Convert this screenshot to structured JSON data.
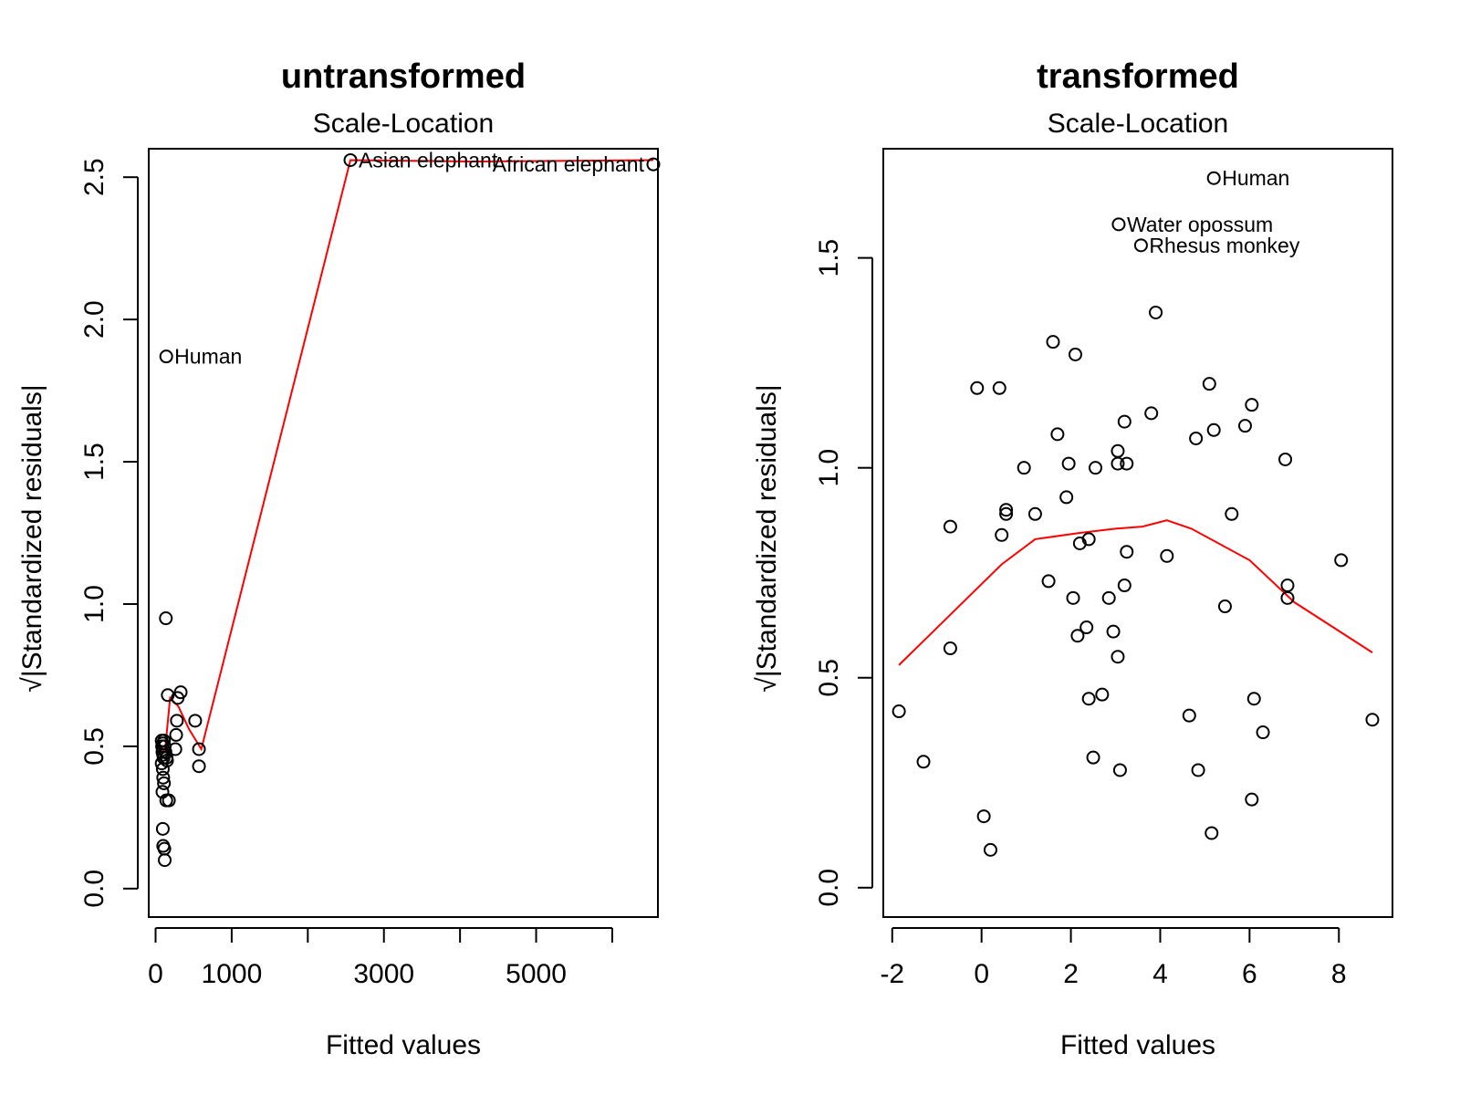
{
  "colors": {
    "points": "#000000",
    "smoother": "#ff0000",
    "background": "#ffffff"
  },
  "chart_data": [
    {
      "type": "scatter",
      "title": "untransformed",
      "subtitle": "Scale-Location",
      "xlabel": "Fitted values",
      "ylabel": "√|Standardized residuals|",
      "xlim": [
        -90,
        6600
      ],
      "ylim": [
        -0.1,
        2.6
      ],
      "xticks": [
        0,
        1000,
        2000,
        3000,
        4000,
        5000,
        6000
      ],
      "xtick_labels": [
        "0",
        "1000",
        "",
        "3000",
        "",
        "5000",
        ""
      ],
      "yticks": [
        0.0,
        0.5,
        1.0,
        1.5,
        2.0,
        2.5
      ],
      "ytick_labels": [
        "0.0",
        "0.5",
        "1.0",
        "1.5",
        "2.0",
        "2.5"
      ],
      "points": [
        {
          "x": 2560,
          "y": 2.56,
          "label": "Asian elephant"
        },
        {
          "x": 6540,
          "y": 2.545,
          "label": "African elephant"
        },
        {
          "x": 140,
          "y": 1.87,
          "label": "Human"
        },
        {
          "x": 135,
          "y": 0.95
        },
        {
          "x": 160,
          "y": 0.68
        },
        {
          "x": 330,
          "y": 0.69
        },
        {
          "x": 290,
          "y": 0.67
        },
        {
          "x": 520,
          "y": 0.59
        },
        {
          "x": 280,
          "y": 0.59
        },
        {
          "x": 270,
          "y": 0.54
        },
        {
          "x": 570,
          "y": 0.49
        },
        {
          "x": 260,
          "y": 0.49
        },
        {
          "x": 570,
          "y": 0.43
        },
        {
          "x": 80,
          "y": 0.52
        },
        {
          "x": 95,
          "y": 0.51
        },
        {
          "x": 110,
          "y": 0.52
        },
        {
          "x": 120,
          "y": 0.5
        },
        {
          "x": 85,
          "y": 0.5
        },
        {
          "x": 90,
          "y": 0.48
        },
        {
          "x": 100,
          "y": 0.47
        },
        {
          "x": 130,
          "y": 0.48
        },
        {
          "x": 145,
          "y": 0.46
        },
        {
          "x": 150,
          "y": 0.45
        },
        {
          "x": 105,
          "y": 0.46
        },
        {
          "x": 80,
          "y": 0.44
        },
        {
          "x": 95,
          "y": 0.42
        },
        {
          "x": 100,
          "y": 0.39
        },
        {
          "x": 110,
          "y": 0.37
        },
        {
          "x": 90,
          "y": 0.34
        },
        {
          "x": 140,
          "y": 0.31
        },
        {
          "x": 175,
          "y": 0.31
        },
        {
          "x": 95,
          "y": 0.21
        },
        {
          "x": 100,
          "y": 0.15
        },
        {
          "x": 115,
          "y": 0.14
        },
        {
          "x": 120,
          "y": 0.1
        }
      ],
      "smoother": {
        "x": [
          80,
          130,
          190,
          300,
          440,
          600,
          2560,
          4200,
          6540
        ],
        "y": [
          0.47,
          0.5,
          0.67,
          0.64,
          0.56,
          0.49,
          2.56,
          2.555,
          2.56
        ]
      }
    },
    {
      "type": "scatter",
      "title": "transformed",
      "subtitle": "Scale-Location",
      "xlabel": "Fitted values",
      "ylabel": "√|Standardized residuals|",
      "xlim": [
        -2.2,
        9.2
      ],
      "ylim": [
        -0.07,
        1.76
      ],
      "xticks": [
        -2,
        0,
        2,
        4,
        6,
        8
      ],
      "xtick_labels": [
        "-2",
        "0",
        "2",
        "4",
        "6",
        "8"
      ],
      "yticks": [
        0.0,
        0.5,
        1.0,
        1.5
      ],
      "ytick_labels": [
        "0.0",
        "0.5",
        "1.0",
        "1.5"
      ],
      "points": [
        {
          "x": 5.2,
          "y": 1.69,
          "label": "Human"
        },
        {
          "x": 3.07,
          "y": 1.58,
          "label": "Water opossum"
        },
        {
          "x": 3.57,
          "y": 1.53,
          "label": "Rhesus monkey"
        },
        {
          "x": 3.9,
          "y": 1.37
        },
        {
          "x": 1.6,
          "y": 1.3
        },
        {
          "x": 2.1,
          "y": 1.27
        },
        {
          "x": -0.1,
          "y": 1.19
        },
        {
          "x": 0.4,
          "y": 1.19
        },
        {
          "x": 5.1,
          "y": 1.2
        },
        {
          "x": 6.05,
          "y": 1.15
        },
        {
          "x": 3.8,
          "y": 1.13
        },
        {
          "x": 3.2,
          "y": 1.11
        },
        {
          "x": 5.2,
          "y": 1.09
        },
        {
          "x": 5.9,
          "y": 1.1
        },
        {
          "x": 1.7,
          "y": 1.08
        },
        {
          "x": 4.8,
          "y": 1.07
        },
        {
          "x": 3.05,
          "y": 1.04
        },
        {
          "x": 6.8,
          "y": 1.02
        },
        {
          "x": 0.95,
          "y": 1.0
        },
        {
          "x": 1.95,
          "y": 1.01
        },
        {
          "x": 2.55,
          "y": 1.0
        },
        {
          "x": 3.05,
          "y": 1.01
        },
        {
          "x": 3.25,
          "y": 1.01
        },
        {
          "x": 1.9,
          "y": 0.93
        },
        {
          "x": 0.55,
          "y": 0.89
        },
        {
          "x": 0.55,
          "y": 0.9
        },
        {
          "x": 1.2,
          "y": 0.89
        },
        {
          "x": 5.6,
          "y": 0.89
        },
        {
          "x": -0.7,
          "y": 0.86
        },
        {
          "x": 0.45,
          "y": 0.84
        },
        {
          "x": 2.4,
          "y": 0.83
        },
        {
          "x": 2.2,
          "y": 0.82
        },
        {
          "x": 3.25,
          "y": 0.8
        },
        {
          "x": 4.15,
          "y": 0.79
        },
        {
          "x": 8.05,
          "y": 0.78
        },
        {
          "x": 1.5,
          "y": 0.73
        },
        {
          "x": 6.85,
          "y": 0.72
        },
        {
          "x": 3.2,
          "y": 0.72
        },
        {
          "x": 2.05,
          "y": 0.69
        },
        {
          "x": 2.85,
          "y": 0.69
        },
        {
          "x": 6.85,
          "y": 0.69
        },
        {
          "x": 5.45,
          "y": 0.67
        },
        {
          "x": 2.35,
          "y": 0.62
        },
        {
          "x": 2.95,
          "y": 0.61
        },
        {
          "x": 2.15,
          "y": 0.6
        },
        {
          "x": -0.7,
          "y": 0.57
        },
        {
          "x": 3.05,
          "y": 0.55
        },
        {
          "x": 2.7,
          "y": 0.46
        },
        {
          "x": 2.4,
          "y": 0.45
        },
        {
          "x": 6.1,
          "y": 0.45
        },
        {
          "x": -1.85,
          "y": 0.42
        },
        {
          "x": 4.65,
          "y": 0.41
        },
        {
          "x": 8.75,
          "y": 0.4
        },
        {
          "x": 6.3,
          "y": 0.37
        },
        {
          "x": -1.3,
          "y": 0.3
        },
        {
          "x": 2.5,
          "y": 0.31
        },
        {
          "x": 3.1,
          "y": 0.28
        },
        {
          "x": 4.85,
          "y": 0.28
        },
        {
          "x": 6.05,
          "y": 0.21
        },
        {
          "x": 0.05,
          "y": 0.17
        },
        {
          "x": 5.15,
          "y": 0.13
        },
        {
          "x": 0.2,
          "y": 0.09
        }
      ],
      "smoother": {
        "x": [
          -1.85,
          -0.7,
          0.45,
          1.2,
          2.2,
          3.0,
          3.6,
          4.15,
          4.7,
          6.0,
          7.0,
          8.75
        ],
        "y": [
          0.53,
          0.65,
          0.77,
          0.83,
          0.845,
          0.855,
          0.86,
          0.875,
          0.855,
          0.78,
          0.68,
          0.56
        ]
      }
    }
  ]
}
